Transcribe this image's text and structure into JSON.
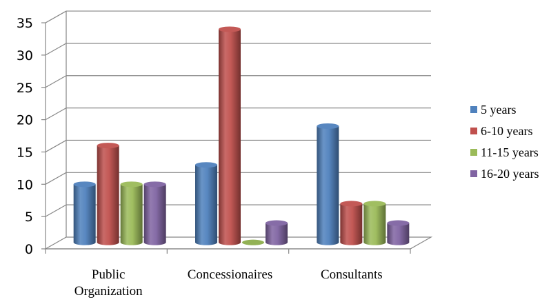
{
  "chart_data": {
    "type": "bar",
    "title": "",
    "xlabel": "",
    "ylabel": "",
    "ylim": [
      0,
      35
    ],
    "yticks": [
      "0",
      "5",
      "10",
      "15",
      "20",
      "25",
      "30",
      "35"
    ],
    "grid": true,
    "legend_position": "right",
    "categories": [
      "Public Organization",
      "Concessionaires",
      "Consultants"
    ],
    "category_lines": [
      [
        "Public",
        "Organization"
      ],
      [
        "Concessionaires"
      ],
      [
        "Consultants"
      ]
    ],
    "series": [
      {
        "name": "5 years",
        "color": "#4F81BD",
        "values": [
          9,
          12,
          18
        ]
      },
      {
        "name": "6-10 years",
        "color": "#C0504D",
        "values": [
          15,
          33,
          6
        ]
      },
      {
        "name": "11-15 years",
        "color": "#9BBB59",
        "values": [
          9,
          0,
          6
        ]
      },
      {
        "name": "16-20 years",
        "color": "#8064A2",
        "values": [
          9,
          3,
          3
        ]
      }
    ]
  }
}
